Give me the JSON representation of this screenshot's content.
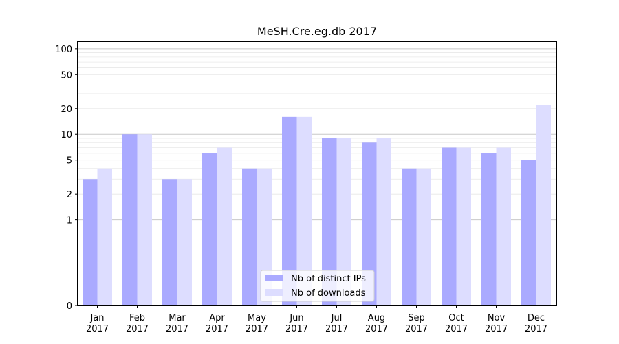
{
  "chart_data": {
    "type": "bar",
    "title": "MeSH.Cre.eg.db 2017",
    "xlabel": "",
    "ylabel": "",
    "y_scale": "symlog",
    "ylim": [
      0,
      120
    ],
    "yticks": [
      0,
      1,
      2,
      5,
      10,
      20,
      50,
      100
    ],
    "categories": [
      "Jan\n2017",
      "Feb\n2017",
      "Mar\n2017",
      "Apr\n2017",
      "May\n2017",
      "Jun\n2017",
      "Jul\n2017",
      "Aug\n2017",
      "Sep\n2017",
      "Oct\n2017",
      "Nov\n2017",
      "Dec\n2017"
    ],
    "series": [
      {
        "name": "Nb of distinct IPs",
        "color": "#aaaaff",
        "values": [
          3,
          10,
          3,
          6,
          4,
          16,
          9,
          8,
          4,
          7,
          6,
          5
        ]
      },
      {
        "name": "Nb of downloads",
        "color": "#ddddff",
        "values": [
          4,
          10,
          3,
          7,
          4,
          16,
          9,
          9,
          4,
          7,
          7,
          22
        ]
      }
    ],
    "legend_position": "bottom-center",
    "grid": true
  }
}
